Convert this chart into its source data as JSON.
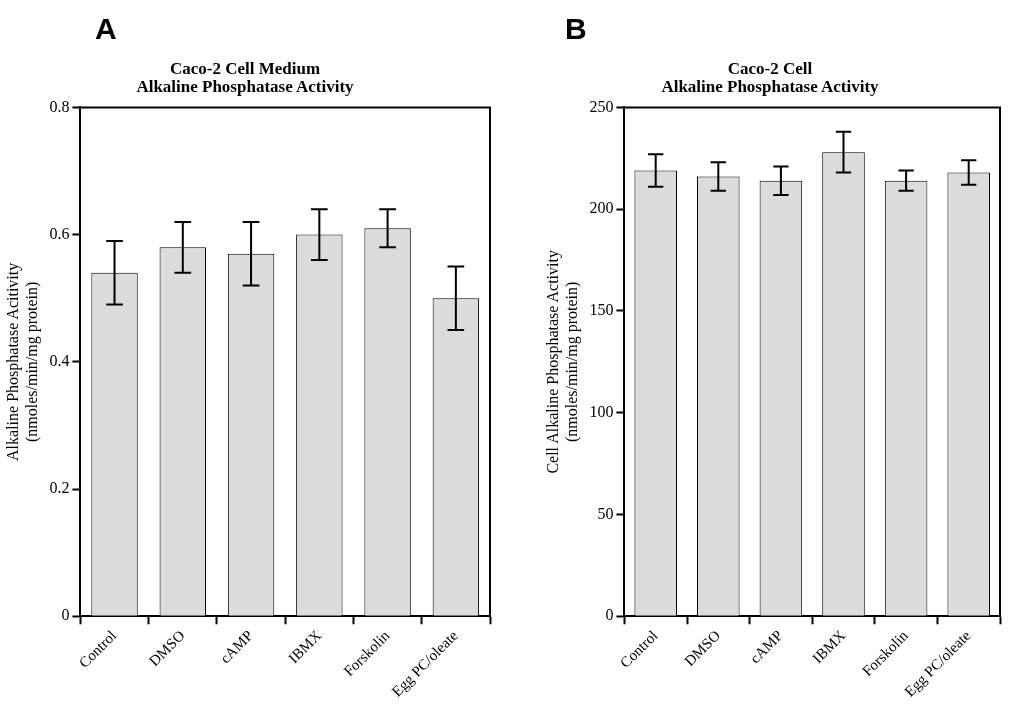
{
  "chart_data": [
    {
      "type": "bar",
      "title": "Caco-2 Cell Medium\nAlkaline Phosphatase Activity",
      "ylabel": "Alkaline Phosphatase Acitivity\n(nmoles/min/mg protein)",
      "annotations": [
        "A"
      ],
      "categories": [
        "Control",
        "DMSO",
        "cAMP",
        "IBMX",
        "Forskolin",
        "Egg PC/oleate"
      ],
      "values": [
        0.54,
        0.58,
        0.57,
        0.6,
        0.61,
        0.5
      ],
      "errors": [
        0.05,
        0.04,
        0.05,
        0.04,
        0.03,
        0.05
      ],
      "color": "#dcdcdc",
      "ylim": [
        0,
        0.8
      ],
      "yticks": [
        0,
        0.2,
        0.4,
        0.6,
        0.8
      ],
      "grid": false,
      "legend": false
    },
    {
      "type": "bar",
      "title": "Caco-2 Cell\nAlkaline Phosphatase Activity",
      "ylabel": "Cell Alkaline Phosphatase Activity\n(nmoles/min/mg protein)",
      "annotations": [
        "B"
      ],
      "categories": [
        "Control",
        "DMSO",
        "cAMP",
        "IBMX",
        "Forskolin",
        "Egg PC/oleate"
      ],
      "values": [
        219,
        216,
        214,
        228,
        214,
        218
      ],
      "errors": [
        8,
        7,
        7,
        10,
        5,
        6
      ],
      "color": "#dcdcdc",
      "ylim": [
        0,
        250
      ],
      "yticks": [
        0,
        50,
        100,
        150,
        200,
        250
      ],
      "grid": false,
      "legend": false
    }
  ]
}
